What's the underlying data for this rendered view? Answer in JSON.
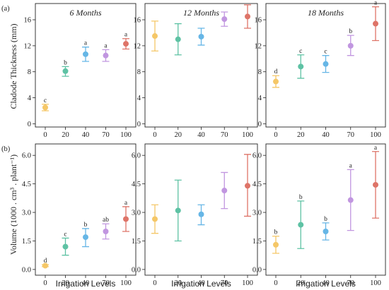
{
  "colors": {
    "series": [
      "#f5c767",
      "#5ec2a4",
      "#66b6e6",
      "#c196e0",
      "#de7468"
    ],
    "frame": "#222222"
  },
  "rows": [
    {
      "tag": "(a)",
      "ylabel": "Cladode Thickness (mm)"
    },
    {
      "tag": "(b)",
      "ylabel": "Volume (1000 . cm³ . plant⁻¹)"
    }
  ],
  "xlabel": "Irrigation Levels",
  "chart_data": [
    {
      "type": "scatter",
      "row": 0,
      "col": 0,
      "title": "6 Months",
      "categories": [
        "0",
        "20",
        "40",
        "70",
        "100"
      ],
      "values": [
        2.5,
        8.1,
        10.7,
        10.5,
        12.3
      ],
      "err_low": [
        2.0,
        7.3,
        9.6,
        9.6,
        11.5
      ],
      "err_high": [
        3.0,
        8.8,
        11.8,
        11.4,
        13.1
      ],
      "labels": [
        "c",
        "b",
        "a",
        "a",
        "a"
      ],
      "ylim": [
        -0.5,
        18.5
      ],
      "yticks": [
        0,
        4,
        8,
        12,
        16
      ]
    },
    {
      "type": "scatter",
      "row": 0,
      "col": 1,
      "title": "12 Months",
      "categories": [
        "0",
        "20",
        "40",
        "70",
        "100"
      ],
      "values": [
        13.5,
        13.0,
        13.4,
        16.1,
        16.5
      ],
      "err_low": [
        11.2,
        10.6,
        12.1,
        15.0,
        14.7
      ],
      "err_high": [
        15.8,
        15.4,
        14.7,
        17.2,
        18.3
      ],
      "labels": [
        "",
        "",
        "",
        "",
        ""
      ],
      "ylim": [
        -0.5,
        18.5
      ],
      "yticks": [
        0,
        4,
        8,
        12,
        16
      ]
    },
    {
      "type": "scatter",
      "row": 0,
      "col": 2,
      "title": "18 Months",
      "categories": [
        "0",
        "20",
        "40",
        "70",
        "100"
      ],
      "values": [
        6.5,
        8.8,
        9.2,
        12.0,
        15.4
      ],
      "err_low": [
        5.6,
        7.0,
        7.9,
        10.5,
        12.8
      ],
      "err_high": [
        7.4,
        10.6,
        10.5,
        13.6,
        18.0
      ],
      "labels": [
        "d",
        "c",
        "c",
        "b",
        "a"
      ],
      "ylim": [
        -0.5,
        18.5
      ],
      "yticks": [
        0,
        4,
        8,
        12,
        16
      ]
    },
    {
      "type": "scatter",
      "row": 1,
      "col": 0,
      "title": "",
      "categories": [
        "0",
        "20",
        "40",
        "70",
        "100"
      ],
      "values": [
        0.2,
        1.2,
        1.7,
        2.0,
        2.65
      ],
      "err_low": [
        0.15,
        0.75,
        1.2,
        1.6,
        2.0
      ],
      "err_high": [
        0.25,
        1.65,
        2.15,
        2.4,
        3.3
      ],
      "labels": [
        "d",
        "c",
        "b",
        "ab",
        "a"
      ],
      "ylim": [
        -0.3,
        6.6
      ],
      "yticks": [
        0.0,
        1.5,
        3.0,
        4.5,
        6.0
      ],
      "ytick_labels": [
        "0.0",
        "1.5",
        "3.0",
        "4.5",
        "6.0"
      ]
    },
    {
      "type": "scatter",
      "row": 1,
      "col": 1,
      "title": "",
      "categories": [
        "0",
        "20",
        "40",
        "70",
        "100"
      ],
      "values": [
        2.65,
        3.1,
        2.9,
        4.15,
        4.4
      ],
      "err_low": [
        1.9,
        1.5,
        2.35,
        3.2,
        2.8
      ],
      "err_high": [
        3.4,
        4.7,
        3.4,
        5.1,
        6.05
      ],
      "labels": [
        "",
        "",
        "",
        "",
        ""
      ],
      "ylim": [
        -0.3,
        6.6
      ],
      "yticks": [
        0.0,
        1.5,
        3.0,
        4.5,
        6.0
      ],
      "ytick_labels": [
        "0.0",
        "1.5",
        "3.0",
        "4.5",
        "6.0"
      ]
    },
    {
      "type": "scatter",
      "row": 1,
      "col": 2,
      "title": "",
      "categories": [
        "0",
        "20",
        "40",
        "70",
        "100"
      ],
      "values": [
        1.3,
        2.35,
        2.0,
        3.65,
        4.45
      ],
      "err_low": [
        0.85,
        1.1,
        1.55,
        2.05,
        2.7
      ],
      "err_high": [
        1.75,
        3.6,
        2.45,
        5.25,
        6.2
      ],
      "labels": [
        "b",
        "b",
        "b",
        "a",
        "a"
      ],
      "ylim": [
        -0.3,
        6.6
      ],
      "yticks": [
        0.0,
        1.5,
        3.0,
        4.5,
        6.0
      ],
      "ytick_labels": [
        "0.0",
        "1.5",
        "3.0",
        "4.5",
        "6.0"
      ]
    }
  ]
}
